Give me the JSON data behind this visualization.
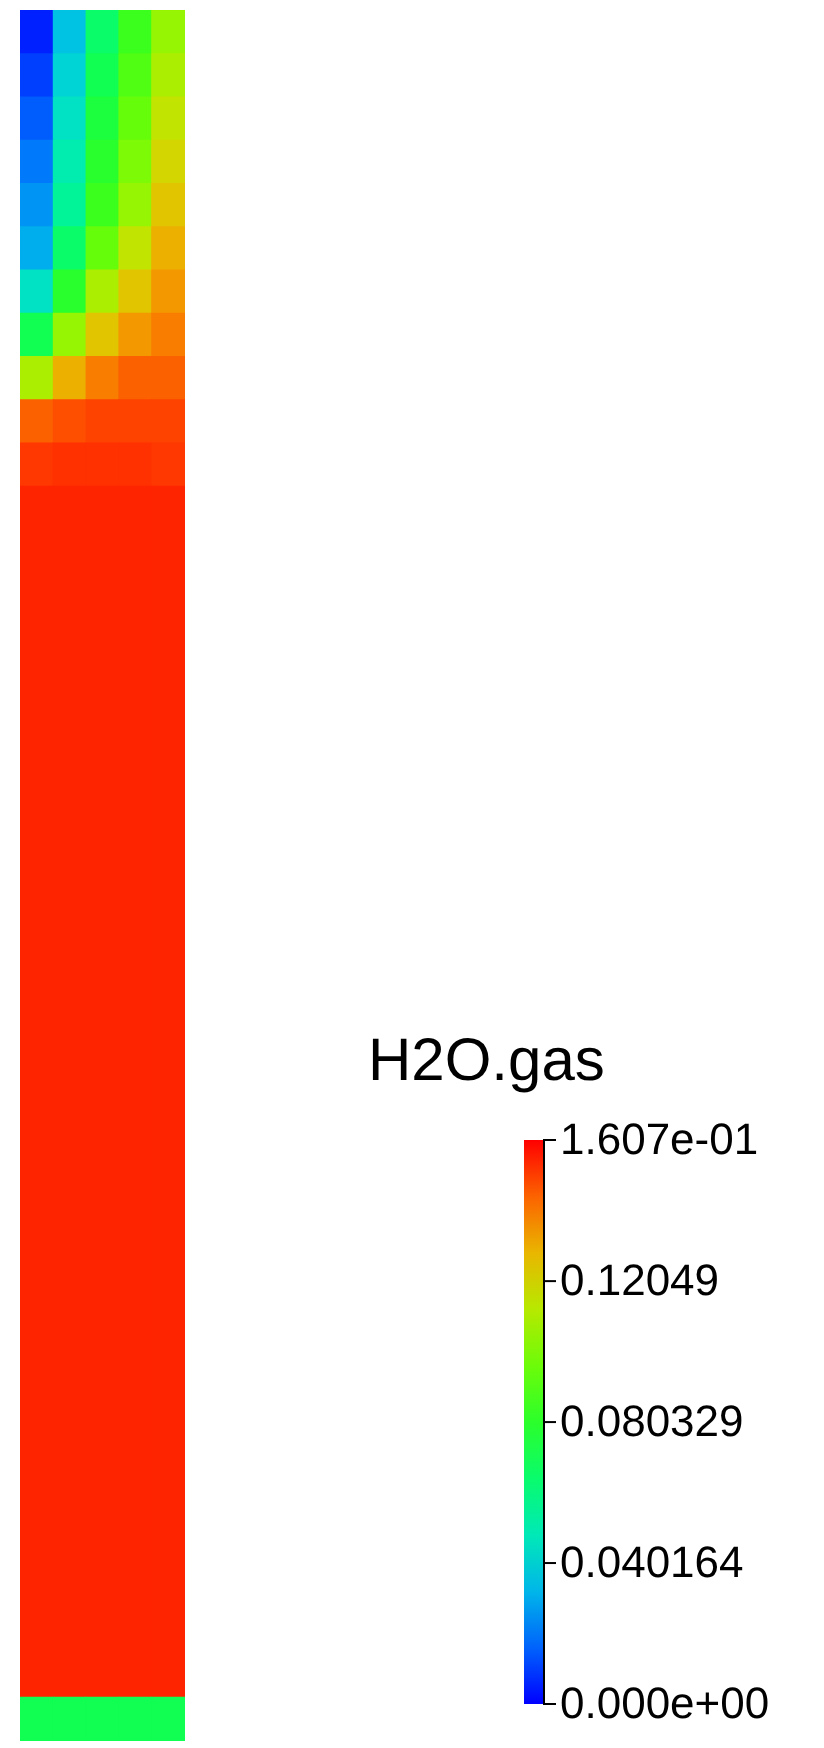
{
  "chart_data": {
    "type": "heatmap",
    "clabel": "H2O.gas",
    "categories": [
      null,
      null,
      null,
      null,
      null
    ],
    "y_categories": [
      null,
      null,
      null,
      null,
      null,
      null,
      null,
      null,
      null,
      null,
      null,
      null,
      null,
      null,
      null,
      null,
      null,
      null,
      null,
      null,
      null,
      null,
      null,
      null,
      null,
      null,
      null,
      null,
      null,
      null,
      null,
      null,
      null,
      null,
      null,
      null,
      null,
      null,
      null,
      null
    ],
    "cells": [
      [
        0.005,
        0.035,
        0.065,
        0.085,
        0.105
      ],
      [
        0.01,
        0.04,
        0.07,
        0.09,
        0.11
      ],
      [
        0.015,
        0.045,
        0.075,
        0.095,
        0.115
      ],
      [
        0.02,
        0.05,
        0.08,
        0.1,
        0.12
      ],
      [
        0.025,
        0.055,
        0.085,
        0.105,
        0.125
      ],
      [
        0.03,
        0.065,
        0.095,
        0.115,
        0.13
      ],
      [
        0.045,
        0.08,
        0.11,
        0.125,
        0.135
      ],
      [
        0.07,
        0.105,
        0.125,
        0.135,
        0.14
      ],
      [
        0.11,
        0.13,
        0.14,
        0.145,
        0.145
      ],
      [
        0.145,
        0.148,
        0.15,
        0.15,
        0.15
      ],
      [
        0.152,
        0.153,
        0.153,
        0.153,
        0.152
      ],
      [
        0.155,
        0.155,
        0.155,
        0.155,
        0.155
      ],
      [
        0.155,
        0.155,
        0.155,
        0.155,
        0.155
      ],
      [
        0.155,
        0.155,
        0.155,
        0.155,
        0.155
      ],
      [
        0.155,
        0.155,
        0.155,
        0.155,
        0.155
      ],
      [
        0.155,
        0.155,
        0.155,
        0.155,
        0.155
      ],
      [
        0.155,
        0.155,
        0.155,
        0.155,
        0.155
      ],
      [
        0.155,
        0.155,
        0.155,
        0.155,
        0.155
      ],
      [
        0.155,
        0.155,
        0.155,
        0.155,
        0.155
      ],
      [
        0.155,
        0.155,
        0.155,
        0.155,
        0.155
      ],
      [
        0.155,
        0.155,
        0.155,
        0.155,
        0.155
      ],
      [
        0.155,
        0.155,
        0.155,
        0.155,
        0.155
      ],
      [
        0.155,
        0.155,
        0.155,
        0.155,
        0.155
      ],
      [
        0.155,
        0.155,
        0.155,
        0.155,
        0.155
      ],
      [
        0.155,
        0.155,
        0.155,
        0.155,
        0.155
      ],
      [
        0.155,
        0.155,
        0.155,
        0.155,
        0.155
      ],
      [
        0.155,
        0.155,
        0.155,
        0.155,
        0.155
      ],
      [
        0.155,
        0.155,
        0.155,
        0.155,
        0.155
      ],
      [
        0.155,
        0.155,
        0.155,
        0.155,
        0.155
      ],
      [
        0.155,
        0.155,
        0.155,
        0.155,
        0.155
      ],
      [
        0.155,
        0.155,
        0.155,
        0.155,
        0.155
      ],
      [
        0.155,
        0.155,
        0.155,
        0.155,
        0.155
      ],
      [
        0.155,
        0.155,
        0.155,
        0.155,
        0.155
      ],
      [
        0.155,
        0.155,
        0.155,
        0.155,
        0.155
      ],
      [
        0.155,
        0.155,
        0.155,
        0.155,
        0.155
      ],
      [
        0.155,
        0.155,
        0.155,
        0.155,
        0.155
      ],
      [
        0.155,
        0.155,
        0.155,
        0.155,
        0.155
      ],
      [
        0.155,
        0.155,
        0.155,
        0.155,
        0.155
      ],
      [
        0.155,
        0.155,
        0.155,
        0.155,
        0.155
      ],
      [
        0.07,
        0.07,
        0.07,
        0.07,
        0.07
      ]
    ],
    "clim": [
      0,
      0.1607
    ],
    "cticks": [
      {
        "value": 0,
        "label": "0.000e+00"
      },
      0.040164,
      0.080329,
      0.12049,
      {
        "value": 0.1607,
        "label": "1.607e-01"
      }
    ]
  }
}
